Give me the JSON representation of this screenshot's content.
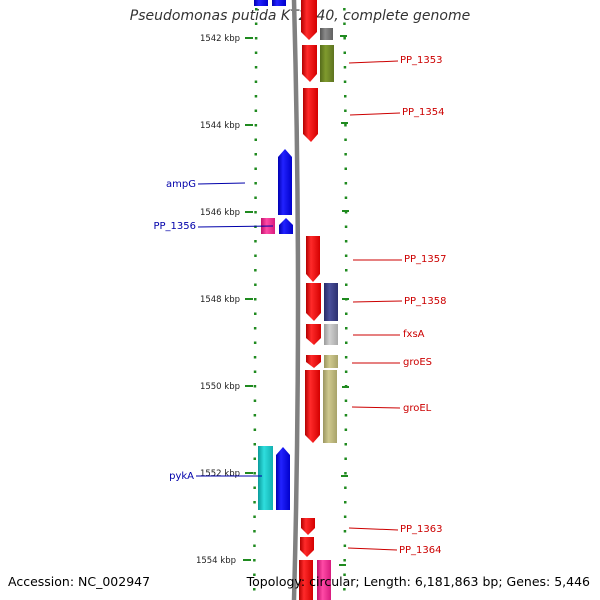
{
  "title": "Pseudomonas putida KT2440, complete genome",
  "footer": {
    "accession": "Accession: NC_002947",
    "summary": "Topology: circular; Length: 6,181,863 bp; Genes: 5,446"
  },
  "colors": {
    "backbone": "#808080",
    "ruler": "#1f8a1f",
    "forward_label": "#cc0000",
    "reverse_label": "#0000aa"
  },
  "ticks": [
    {
      "label": "1542 kbp"
    },
    {
      "label": "1544 kbp"
    },
    {
      "label": "1546 kbp"
    },
    {
      "label": "1548 kbp"
    },
    {
      "label": "1550 kbp"
    },
    {
      "label": "1552 kbp"
    },
    {
      "label": "1554 kbp"
    }
  ],
  "gene_labels": [
    {
      "text": "PP_1353",
      "strand": "forward"
    },
    {
      "text": "PP_1354",
      "strand": "forward"
    },
    {
      "text": "ampG",
      "strand": "reverse"
    },
    {
      "text": "PP_1356",
      "strand": "reverse"
    },
    {
      "text": "PP_1357",
      "strand": "forward"
    },
    {
      "text": "PP_1358",
      "strand": "forward"
    },
    {
      "text": "fxsA",
      "strand": "forward"
    },
    {
      "text": "groES",
      "strand": "forward"
    },
    {
      "text": "groEL",
      "strand": "forward"
    },
    {
      "text": "pykA",
      "strand": "reverse"
    },
    {
      "text": "PP_1363",
      "strand": "forward"
    },
    {
      "text": "PP_1364",
      "strand": "forward"
    }
  ]
}
